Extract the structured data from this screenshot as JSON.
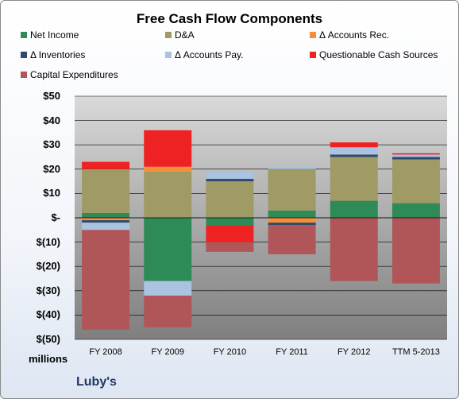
{
  "chart_data": {
    "type": "bar",
    "stacked": true,
    "title": "Free Cash Flow Components",
    "units_label": "millions",
    "company": "Luby's",
    "categories": [
      "FY 2008",
      "FY 2009",
      "FY 2010",
      "FY 2011",
      "FY 2012",
      "TTM 5-2013"
    ],
    "y_tick_labels": [
      "$50",
      "$40",
      "$30",
      "$20",
      "$10",
      "$-",
      "$(10)",
      "$(20)",
      "$(30)",
      "$(40)",
      "$(50)"
    ],
    "ylim": [
      -50,
      50
    ],
    "grid": true,
    "legend_position": "top",
    "series": [
      {
        "name": "Net Income",
        "color": "#2e8b57",
        "values": [
          2,
          -26,
          -3,
          3,
          7,
          6
        ]
      },
      {
        "name": "D&A",
        "color": "#a09a64",
        "values": [
          18,
          19,
          15,
          17,
          18,
          18
        ]
      },
      {
        "name": "Δ Accounts Rec.",
        "color": "#f58f3a",
        "values": [
          -1,
          2,
          0,
          -2,
          0,
          0
        ]
      },
      {
        "name": "Δ Inventories",
        "color": "#2f4a6d",
        "values": [
          -1,
          0,
          1,
          -1,
          1,
          1
        ]
      },
      {
        "name": "Δ Accounts Pay.",
        "color": "#a9c3e0",
        "values": [
          -3,
          -6,
          3,
          1,
          3,
          1
        ]
      },
      {
        "name": "Questionable Cash Sources",
        "color": "#ee2222",
        "values": [
          3,
          15,
          -7,
          0,
          2,
          0.5
        ]
      },
      {
        "name": "Capital Expenditures",
        "color": "#b05658",
        "values": [
          -41,
          -13,
          -4,
          -12,
          -26,
          -27
        ]
      }
    ]
  }
}
